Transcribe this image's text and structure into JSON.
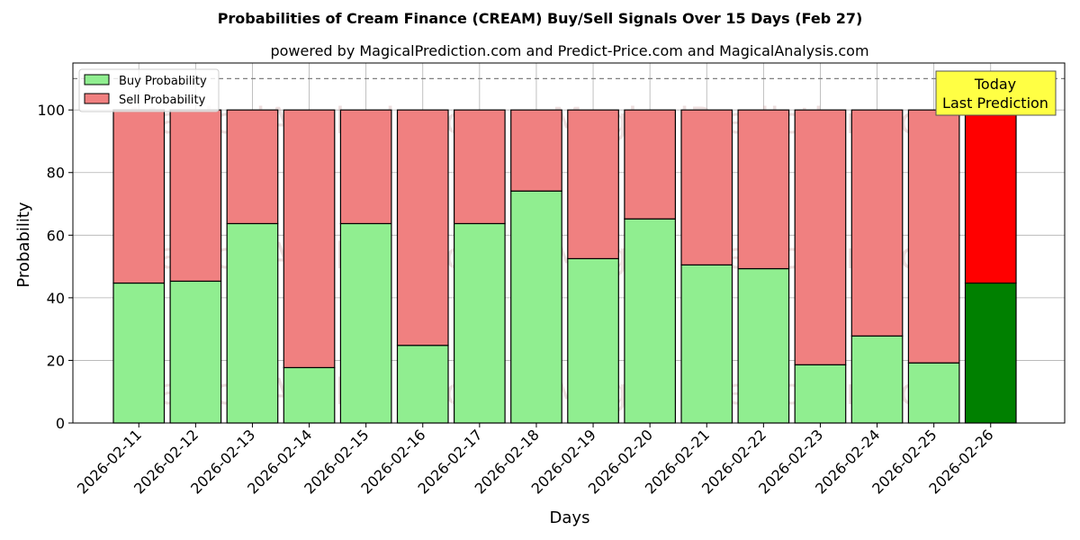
{
  "chart_data": {
    "type": "bar",
    "stacked": true,
    "title": "Probabilities of Cream Finance (CREAM) Buy/Sell Signals Over 15 Days (Feb 27)",
    "subtitle": "powered by MagicalPrediction.com and Predict-Price.com and MagicalAnalysis.com",
    "xlabel": "Days",
    "ylabel": "Probability",
    "ylim": [
      0,
      115
    ],
    "yticks": [
      0,
      20,
      40,
      60,
      80,
      100
    ],
    "grid": true,
    "legend_position": "top-left",
    "reference_line": 110,
    "categories": [
      "2026-02-11",
      "2026-02-12",
      "2026-02-13",
      "2026-02-14",
      "2026-02-15",
      "2026-02-16",
      "2026-02-17",
      "2026-02-18",
      "2026-02-19",
      "2026-02-20",
      "2026-02-21",
      "2026-02-22",
      "2026-02-23",
      "2026-02-24",
      "2026-02-25",
      "2026-02-26"
    ],
    "series": [
      {
        "name": "Buy Probability",
        "color": "#90ee90",
        "highlight_color": "#008000",
        "values": [
          44.7,
          45.3,
          63.7,
          17.7,
          63.7,
          24.8,
          63.7,
          74.1,
          52.5,
          65.2,
          50.5,
          49.3,
          18.6,
          27.8,
          19.2,
          44.7
        ]
      },
      {
        "name": "Sell Probability",
        "color": "#f08080",
        "highlight_color": "#ff0000",
        "values": [
          55.3,
          54.7,
          36.3,
          82.3,
          36.3,
          75.2,
          36.3,
          25.9,
          47.5,
          34.8,
          49.5,
          50.7,
          81.4,
          72.2,
          80.8,
          55.3
        ]
      }
    ],
    "annotation": {
      "lines": [
        "Today",
        "Last Prediction"
      ],
      "background": "#ffff44"
    },
    "watermarks": [
      "MagicalAnalysis.com",
      "MagicalPrediction.com"
    ]
  }
}
